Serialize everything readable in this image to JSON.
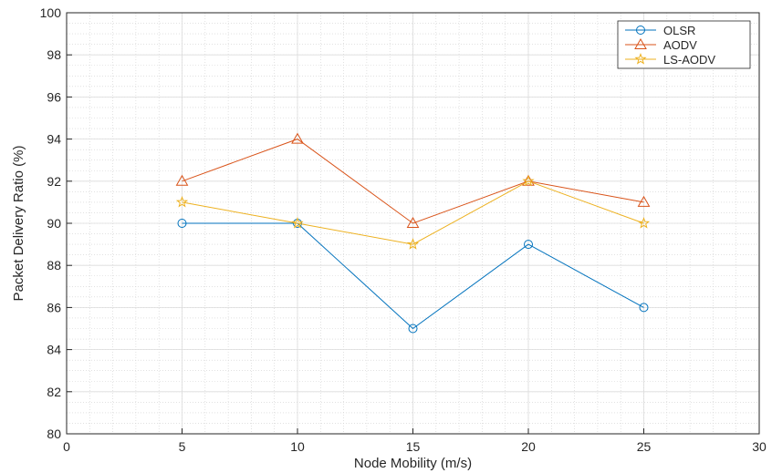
{
  "chart_data": {
    "type": "line",
    "title": "",
    "xlabel": "Node Mobility (m/s)",
    "ylabel": "Packet Delivery Ratio (%)",
    "xlim": [
      0,
      30
    ],
    "ylim": [
      80,
      100
    ],
    "xticks": [
      0,
      5,
      10,
      15,
      20,
      25,
      30
    ],
    "yticks": [
      80,
      82,
      84,
      86,
      88,
      90,
      92,
      94,
      96,
      98,
      100
    ],
    "grid": "major and minor (dotted)",
    "legend_position": "top-right",
    "x": [
      5,
      10,
      15,
      20,
      25
    ],
    "series": [
      {
        "name": "OLSR",
        "values": [
          90,
          90,
          85,
          89,
          86
        ],
        "color": "#0072BD",
        "marker": "circle"
      },
      {
        "name": "AODV",
        "values": [
          92,
          94,
          90,
          92,
          91
        ],
        "color": "#D95319",
        "marker": "triangle"
      },
      {
        "name": "LS-AODV",
        "values": [
          91,
          90,
          89,
          92,
          90
        ],
        "color": "#EDB120",
        "marker": "star"
      }
    ]
  }
}
